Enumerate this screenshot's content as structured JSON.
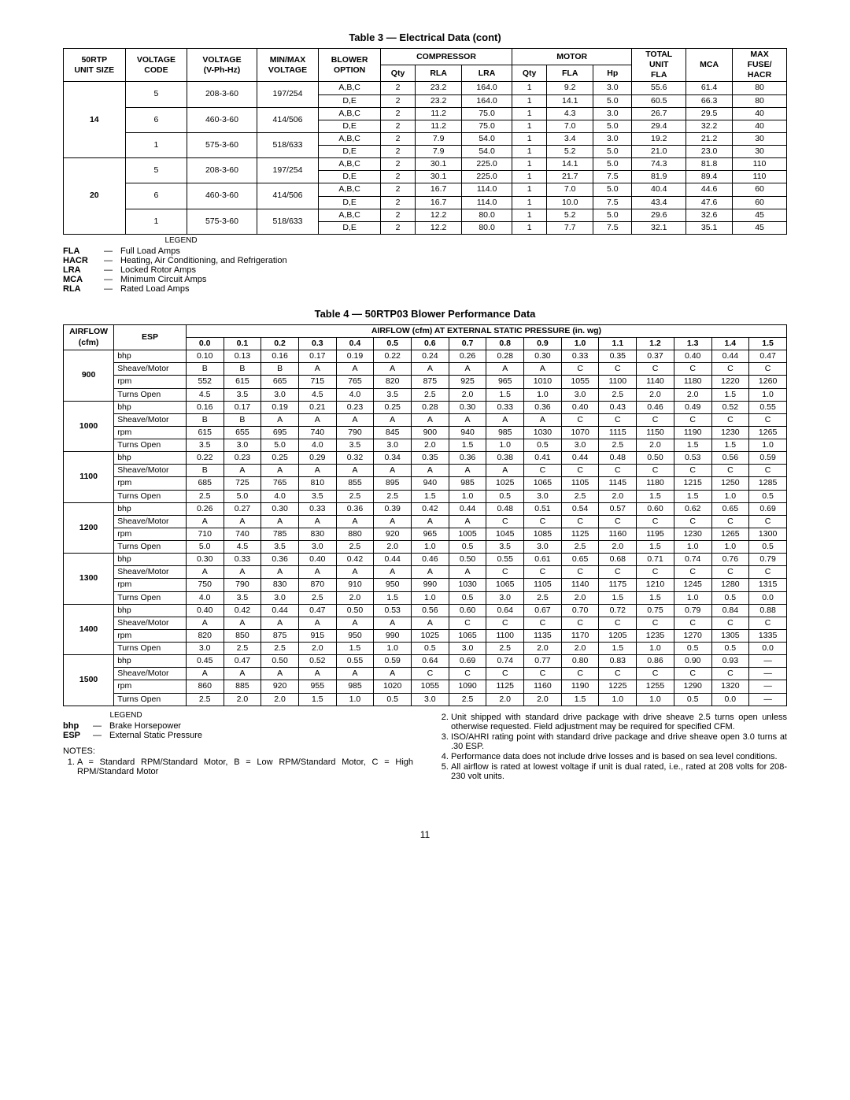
{
  "page_number": "11",
  "table3": {
    "title": "Table 3 — Electrical Data (cont)",
    "headers": {
      "unit_size": "50RTP\nUNIT SIZE",
      "volt_code": "VOLTAGE\nCODE",
      "vphhz": "VOLTAGE\n(V-Ph-Hz)",
      "minmax": "MIN/MAX\nVOLTAGE",
      "blower": "BLOWER\nOPTION",
      "compressor": "COMPRESSOR",
      "motor": "MOTOR",
      "total_unit_fla": "TOTAL\nUNIT\nFLA",
      "mca": "MCA",
      "max_fuse": "MAX\nFUSE/\nHACR",
      "qty": "Qty",
      "rla": "RLA",
      "lra": "LRA",
      "fla": "FLA",
      "hp": "Hp"
    },
    "groups": [
      {
        "unit_size": "14",
        "codes": [
          {
            "code": "5",
            "vphhz": "208-3-60",
            "minmax": "197/254",
            "rows": [
              [
                "A,B,C",
                "2",
                "23.2",
                "164.0",
                "1",
                "9.2",
                "3.0",
                "55.6",
                "61.4",
                "80"
              ],
              [
                "D,E",
                "2",
                "23.2",
                "164.0",
                "1",
                "14.1",
                "5.0",
                "60.5",
                "66.3",
                "80"
              ]
            ]
          },
          {
            "code": "6",
            "vphhz": "460-3-60",
            "minmax": "414/506",
            "rows": [
              [
                "A,B,C",
                "2",
                "11.2",
                "75.0",
                "1",
                "4.3",
                "3.0",
                "26.7",
                "29.5",
                "40"
              ],
              [
                "D,E",
                "2",
                "11.2",
                "75.0",
                "1",
                "7.0",
                "5.0",
                "29.4",
                "32.2",
                "40"
              ]
            ]
          },
          {
            "code": "1",
            "vphhz": "575-3-60",
            "minmax": "518/633",
            "rows": [
              [
                "A,B,C",
                "2",
                "7.9",
                "54.0",
                "1",
                "3.4",
                "3.0",
                "19.2",
                "21.2",
                "30"
              ],
              [
                "D,E",
                "2",
                "7.9",
                "54.0",
                "1",
                "5.2",
                "5.0",
                "21.0",
                "23.0",
                "30"
              ]
            ]
          }
        ]
      },
      {
        "unit_size": "20",
        "codes": [
          {
            "code": "5",
            "vphhz": "208-3-60",
            "minmax": "197/254",
            "rows": [
              [
                "A,B,C",
                "2",
                "30.1",
                "225.0",
                "1",
                "14.1",
                "5.0",
                "74.3",
                "81.8",
                "110"
              ],
              [
                "D,E",
                "2",
                "30.1",
                "225.0",
                "1",
                "21.7",
                "7.5",
                "81.9",
                "89.4",
                "110"
              ]
            ]
          },
          {
            "code": "6",
            "vphhz": "460-3-60",
            "minmax": "414/506",
            "rows": [
              [
                "A,B,C",
                "2",
                "16.7",
                "114.0",
                "1",
                "7.0",
                "5.0",
                "40.4",
                "44.6",
                "60"
              ],
              [
                "D,E",
                "2",
                "16.7",
                "114.0",
                "1",
                "10.0",
                "7.5",
                "43.4",
                "47.6",
                "60"
              ]
            ]
          },
          {
            "code": "1",
            "vphhz": "575-3-60",
            "minmax": "518/633",
            "rows": [
              [
                "A,B,C",
                "2",
                "12.2",
                "80.0",
                "1",
                "5.2",
                "5.0",
                "29.6",
                "32.6",
                "45"
              ],
              [
                "D,E",
                "2",
                "12.2",
                "80.0",
                "1",
                "7.7",
                "7.5",
                "32.1",
                "35.1",
                "45"
              ]
            ]
          }
        ]
      }
    ],
    "legend_title": "LEGEND",
    "legend": [
      [
        "FLA",
        "Full Load Amps"
      ],
      [
        "HACR",
        "Heating, Air Conditioning, and Refrigeration"
      ],
      [
        "LRA",
        "Locked Rotor Amps"
      ],
      [
        "MCA",
        "Minimum Circuit Amps"
      ],
      [
        "RLA",
        "Rated Load Amps"
      ]
    ]
  },
  "table4": {
    "title": "Table 4 — 50RTP03 Blower Performance Data",
    "airflow_label": "AIRFLOW\n(cfm)",
    "esp_label": "ESP",
    "span_label": "AIRFLOW (cfm) AT EXTERNAL STATIC PRESSURE (in. wg)",
    "esp_cols": [
      "0.0",
      "0.1",
      "0.2",
      "0.3",
      "0.4",
      "0.5",
      "0.6",
      "0.7",
      "0.8",
      "0.9",
      "1.0",
      "1.1",
      "1.2",
      "1.3",
      "1.4",
      "1.5"
    ],
    "metrics": [
      "bhp",
      "Sheave/Motor",
      "rpm",
      "Turns Open"
    ],
    "groups": [
      {
        "cfm": "900",
        "rows": [
          [
            "0.10",
            "0.13",
            "0.16",
            "0.17",
            "0.19",
            "0.22",
            "0.24",
            "0.26",
            "0.28",
            "0.30",
            "0.33",
            "0.35",
            "0.37",
            "0.40",
            "0.44",
            "0.47"
          ],
          [
            "B",
            "B",
            "B",
            "A",
            "A",
            "A",
            "A",
            "A",
            "A",
            "A",
            "C",
            "C",
            "C",
            "C",
            "C",
            "C"
          ],
          [
            "552",
            "615",
            "665",
            "715",
            "765",
            "820",
            "875",
            "925",
            "965",
            "1010",
            "1055",
            "1100",
            "1140",
            "1180",
            "1220",
            "1260"
          ],
          [
            "4.5",
            "3.5",
            "3.0",
            "4.5",
            "4.0",
            "3.5",
            "2.5",
            "2.0",
            "1.5",
            "1.0",
            "3.0",
            "2.5",
            "2.0",
            "2.0",
            "1.5",
            "1.0"
          ]
        ]
      },
      {
        "cfm": "1000",
        "rows": [
          [
            "0.16",
            "0.17",
            "0.19",
            "0.21",
            "0.23",
            "0.25",
            "0.28",
            "0.30",
            "0.33",
            "0.36",
            "0.40",
            "0.43",
            "0.46",
            "0.49",
            "0.52",
            "0.55"
          ],
          [
            "B",
            "B",
            "A",
            "A",
            "A",
            "A",
            "A",
            "A",
            "A",
            "A",
            "C",
            "C",
            "C",
            "C",
            "C",
            "C"
          ],
          [
            "615",
            "655",
            "695",
            "740",
            "790",
            "845",
            "900",
            "940",
            "985",
            "1030",
            "1070",
            "1115",
            "1150",
            "1190",
            "1230",
            "1265"
          ],
          [
            "3.5",
            "3.0",
            "5.0",
            "4.0",
            "3.5",
            "3.0",
            "2.0",
            "1.5",
            "1.0",
            "0.5",
            "3.0",
            "2.5",
            "2.0",
            "1.5",
            "1.5",
            "1.0"
          ]
        ]
      },
      {
        "cfm": "1100",
        "rows": [
          [
            "0.22",
            "0.23",
            "0.25",
            "0.29",
            "0.32",
            "0.34",
            "0.35",
            "0.36",
            "0.38",
            "0.41",
            "0.44",
            "0.48",
            "0.50",
            "0.53",
            "0.56",
            "0.59"
          ],
          [
            "B",
            "A",
            "A",
            "A",
            "A",
            "A",
            "A",
            "A",
            "A",
            "C",
            "C",
            "C",
            "C",
            "C",
            "C",
            "C"
          ],
          [
            "685",
            "725",
            "765",
            "810",
            "855",
            "895",
            "940",
            "985",
            "1025",
            "1065",
            "1105",
            "1145",
            "1180",
            "1215",
            "1250",
            "1285"
          ],
          [
            "2.5",
            "5.0",
            "4.0",
            "3.5",
            "2.5",
            "2.5",
            "1.5",
            "1.0",
            "0.5",
            "3.0",
            "2.5",
            "2.0",
            "1.5",
            "1.5",
            "1.0",
            "0.5"
          ]
        ]
      },
      {
        "cfm": "1200",
        "rows": [
          [
            "0.26",
            "0.27",
            "0.30",
            "0.33",
            "0.36",
            "0.39",
            "0.42",
            "0.44",
            "0.48",
            "0.51",
            "0.54",
            "0.57",
            "0.60",
            "0.62",
            "0.65",
            "0.69"
          ],
          [
            "A",
            "A",
            "A",
            "A",
            "A",
            "A",
            "A",
            "A",
            "C",
            "C",
            "C",
            "C",
            "C",
            "C",
            "C",
            "C"
          ],
          [
            "710",
            "740",
            "785",
            "830",
            "880",
            "920",
            "965",
            "1005",
            "1045",
            "1085",
            "1125",
            "1160",
            "1195",
            "1230",
            "1265",
            "1300"
          ],
          [
            "5.0",
            "4.5",
            "3.5",
            "3.0",
            "2.5",
            "2.0",
            "1.0",
            "0.5",
            "3.5",
            "3.0",
            "2.5",
            "2.0",
            "1.5",
            "1.0",
            "1.0",
            "0.5"
          ]
        ]
      },
      {
        "cfm": "1300",
        "rows": [
          [
            "0.30",
            "0.33",
            "0.36",
            "0.40",
            "0.42",
            "0.44",
            "0.46",
            "0.50",
            "0.55",
            "0.61",
            "0.65",
            "0.68",
            "0.71",
            "0.74",
            "0.76",
            "0.79"
          ],
          [
            "A",
            "A",
            "A",
            "A",
            "A",
            "A",
            "A",
            "A",
            "C",
            "C",
            "C",
            "C",
            "C",
            "C",
            "C",
            "C"
          ],
          [
            "750",
            "790",
            "830",
            "870",
            "910",
            "950",
            "990",
            "1030",
            "1065",
            "1105",
            "1140",
            "1175",
            "1210",
            "1245",
            "1280",
            "1315"
          ],
          [
            "4.0",
            "3.5",
            "3.0",
            "2.5",
            "2.0",
            "1.5",
            "1.0",
            "0.5",
            "3.0",
            "2.5",
            "2.0",
            "1.5",
            "1.5",
            "1.0",
            "0.5",
            "0.0"
          ]
        ]
      },
      {
        "cfm": "1400",
        "rows": [
          [
            "0.40",
            "0.42",
            "0.44",
            "0.47",
            "0.50",
            "0.53",
            "0.56",
            "0.60",
            "0.64",
            "0.67",
            "0.70",
            "0.72",
            "0.75",
            "0.79",
            "0.84",
            "0.88"
          ],
          [
            "A",
            "A",
            "A",
            "A",
            "A",
            "A",
            "A",
            "C",
            "C",
            "C",
            "C",
            "C",
            "C",
            "C",
            "C",
            "C"
          ],
          [
            "820",
            "850",
            "875",
            "915",
            "950",
            "990",
            "1025",
            "1065",
            "1100",
            "1135",
            "1170",
            "1205",
            "1235",
            "1270",
            "1305",
            "1335"
          ],
          [
            "3.0",
            "2.5",
            "2.5",
            "2.0",
            "1.5",
            "1.0",
            "0.5",
            "3.0",
            "2.5",
            "2.0",
            "2.0",
            "1.5",
            "1.0",
            "0.5",
            "0.5",
            "0.0"
          ]
        ]
      },
      {
        "cfm": "1500",
        "rows": [
          [
            "0.45",
            "0.47",
            "0.50",
            "0.52",
            "0.55",
            "0.59",
            "0.64",
            "0.69",
            "0.74",
            "0.77",
            "0.80",
            "0.83",
            "0.86",
            "0.90",
            "0.93",
            "—"
          ],
          [
            "A",
            "A",
            "A",
            "A",
            "A",
            "A",
            "C",
            "C",
            "C",
            "C",
            "C",
            "C",
            "C",
            "C",
            "C",
            "—"
          ],
          [
            "860",
            "885",
            "920",
            "955",
            "985",
            "1020",
            "1055",
            "1090",
            "1125",
            "1160",
            "1190",
            "1225",
            "1255",
            "1290",
            "1320",
            "—"
          ],
          [
            "2.5",
            "2.0",
            "2.0",
            "1.5",
            "1.0",
            "0.5",
            "3.0",
            "2.5",
            "2.0",
            "2.0",
            "1.5",
            "1.0",
            "1.0",
            "0.5",
            "0.0",
            "—"
          ]
        ]
      }
    ],
    "legend_title": "LEGEND",
    "legend": [
      [
        "bhp",
        "Brake Horsepower"
      ],
      [
        "ESP",
        "External Static Pressure"
      ]
    ],
    "notes_label": "NOTES:",
    "notes_left": [
      "A = Standard RPM/Standard Motor, B = Low RPM/Standard Motor, C = High RPM/Standard Motor"
    ],
    "notes_right": [
      "Unit shipped with standard drive package with drive sheave 2.5 turns open unless otherwise requested. Field adjustment may be required for specified CFM.",
      "ISO/AHRI rating point with standard drive package and drive sheave open 3.0 turns at .30 ESP.",
      "Performance data does not include drive losses and is based on sea level conditions.",
      "All airflow is rated at lowest voltage if unit is dual rated, i.e., rated at 208 volts for 208-230 volt units."
    ]
  }
}
